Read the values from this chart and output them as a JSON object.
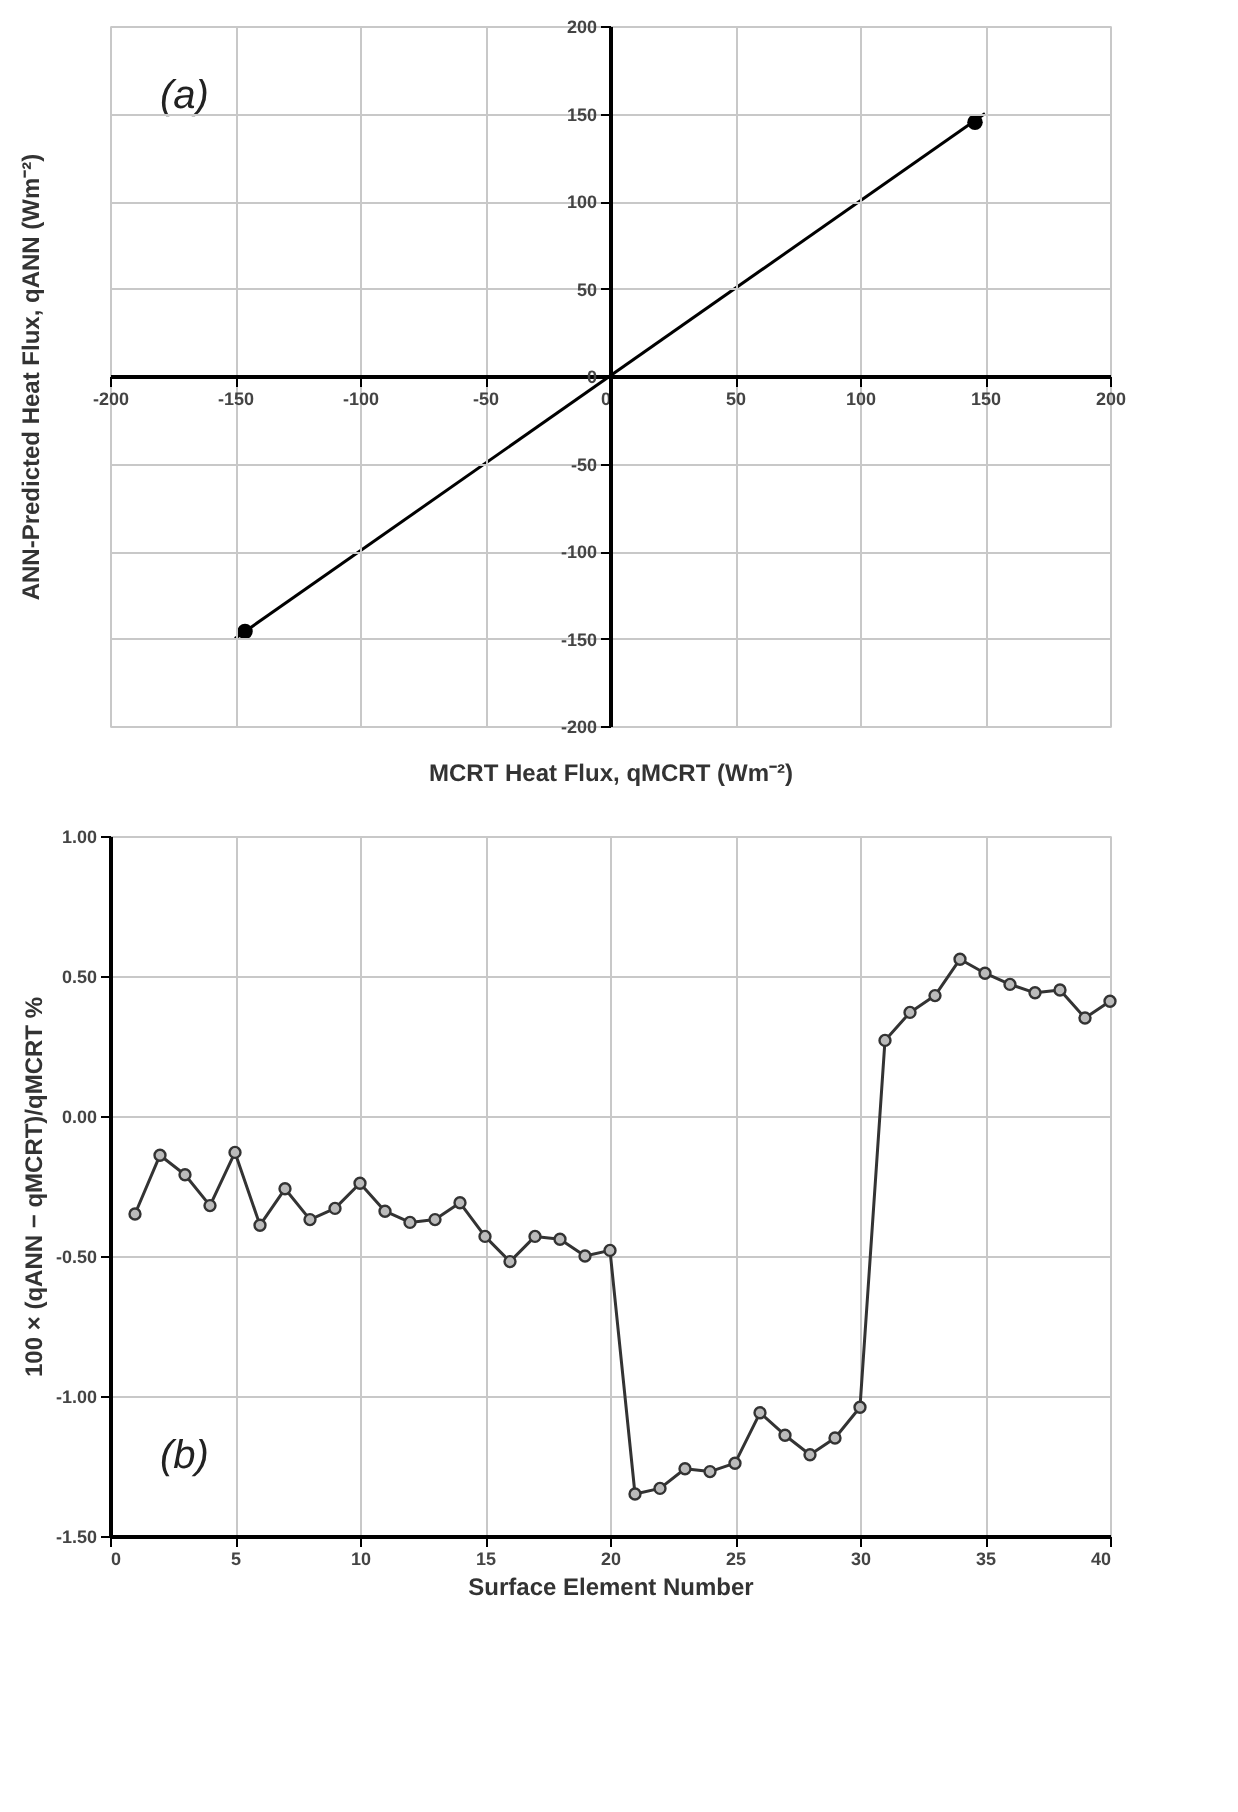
{
  "chart_data": [
    {
      "type": "scatter",
      "xlabel": "MCRT Heat Flux, qMCRT (Wm⁻²)",
      "ylabel": "ANN-Predicted Heat Flux, qANN (Wm⁻²)",
      "annotations": [
        "(a)"
      ],
      "xlim": [
        -200,
        200
      ],
      "ylim": [
        -200,
        200
      ],
      "xticks": [
        -200,
        -150,
        -100,
        -50,
        0,
        50,
        100,
        150,
        200
      ],
      "yticks": [
        -200,
        -150,
        -100,
        -50,
        0,
        50,
        100,
        150,
        200
      ],
      "grid": true,
      "marker": "circle",
      "series": [
        {
          "type": "scatter",
          "color": "#000000",
          "x": [
            -146,
            146
          ],
          "values": [
            -146,
            145
          ]
        },
        {
          "type": "line",
          "color": "#000000",
          "marker": "none",
          "x": [
            -150,
            150
          ],
          "values": [
            -150,
            150
          ]
        }
      ]
    },
    {
      "type": "line",
      "xlabel": "Surface Element Number",
      "ylabel": "100 × (qANN − qMCRT)/qMCRT %",
      "annotations": [
        "(b)"
      ],
      "xlim": [
        0,
        40
      ],
      "ylim": [
        -1.5,
        1.0
      ],
      "xticks": [
        0,
        5,
        10,
        15,
        20,
        25,
        30,
        35,
        40
      ],
      "yticks": [
        {
          "value": -1.5,
          "label": "-1.50"
        },
        {
          "value": -1.0,
          "label": "-1.00"
        },
        {
          "value": -0.5,
          "label": "-0.50"
        },
        {
          "value": 0,
          "label": "0.00"
        },
        {
          "value": 0.5,
          "label": "0.50"
        },
        {
          "value": 1.0,
          "label": "1.00"
        }
      ],
      "grid": true,
      "marker": "circle",
      "series": [
        {
          "color": "#333333",
          "x": [
            1,
            2,
            3,
            4,
            5,
            6,
            7,
            8,
            9,
            10,
            11,
            12,
            13,
            14,
            15,
            16,
            17,
            18,
            19,
            20,
            21,
            22,
            23,
            24,
            25,
            26,
            27,
            28,
            29,
            30,
            31,
            32,
            33,
            34,
            35,
            36,
            37,
            38,
            39,
            40
          ],
          "values": [
            -0.35,
            -0.14,
            -0.21,
            -0.32,
            -0.13,
            -0.39,
            -0.26,
            -0.37,
            -0.33,
            -0.24,
            -0.34,
            -0.38,
            -0.37,
            -0.31,
            -0.43,
            -0.52,
            -0.43,
            -0.44,
            -0.5,
            -0.48,
            -1.35,
            -1.33,
            -1.26,
            -1.27,
            -1.24,
            -1.06,
            -1.14,
            -1.21,
            -1.15,
            -1.04,
            0.27,
            0.37,
            0.43,
            0.56,
            0.51,
            0.47,
            0.44,
            0.45,
            0.35,
            0.41
          ]
        }
      ]
    }
  ]
}
